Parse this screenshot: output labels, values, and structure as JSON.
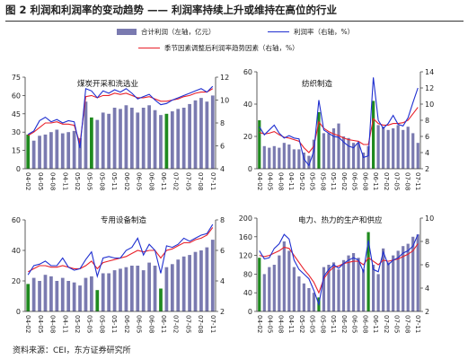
{
  "figure": {
    "title": "图 2  利润和利润率的变动趋势 —— 利润率持续上升或维持在高位的行业",
    "source": "资料来源：CEI，东方证券研究所"
  },
  "legend": {
    "bar_label": "合计利润（左轴，亿元）",
    "line1_label": "利润率（右轴，%）",
    "line2_label": "季节因素调整后利润率趋势因素（右轴，%）",
    "colors": {
      "bar": "#7a7ab0",
      "bar_highlight": "#1f8a1f",
      "line1": "#1f2fd0",
      "line2": "#e8202a"
    }
  },
  "chart_data": [
    {
      "type": "bar",
      "title": "煤炭开采和洗选业",
      "x_tick_labels": [
        "04-02",
        "04-05",
        "04-08",
        "04-11",
        "05-02",
        "05-05",
        "05-08",
        "05-11",
        "06-02",
        "06-05",
        "06-08",
        "06-11",
        "07-02",
        "07-05",
        "07-08",
        "07-11"
      ],
      "ylim_left": [
        0,
        75
      ],
      "yticks_left": [
        0,
        15,
        30,
        45,
        60,
        75
      ],
      "ylim_right": [
        4,
        12
      ],
      "yticks_right": [
        4,
        6,
        8,
        10,
        12
      ],
      "bars": [
        28,
        23,
        27,
        28,
        30,
        32,
        29,
        30,
        31,
        25,
        55,
        42,
        40,
        46,
        45,
        50,
        49,
        52,
        50,
        46,
        50,
        52,
        48,
        44,
        45,
        47,
        49,
        50,
        53,
        56,
        58,
        55,
        60
      ],
      "highlight_indices": [
        0,
        11,
        24
      ],
      "series": [
        {
          "name": "利润率",
          "values": [
            7.0,
            7.3,
            8.2,
            8.5,
            8.1,
            8.3,
            8.0,
            8.2,
            8.1,
            5.8,
            11.0,
            10.8,
            10.2,
            10.8,
            10.6,
            10.9,
            10.7,
            11.0,
            10.6,
            10.1,
            10.3,
            10.5,
            10.0,
            9.6,
            9.7,
            10.0,
            10.2,
            10.4,
            10.6,
            10.8,
            11.0,
            10.7,
            11.2
          ]
        },
        {
          "name": "利润率趋势",
          "values": [
            6.9,
            7.2,
            7.6,
            8.0,
            8.0,
            8.1,
            7.9,
            7.9,
            7.8,
            6.2,
            10.3,
            10.4,
            10.2,
            10.4,
            10.4,
            10.6,
            10.5,
            10.6,
            10.4,
            10.2,
            10.2,
            10.3,
            10.1,
            9.9,
            9.9,
            10.0,
            10.1,
            10.3,
            10.4,
            10.6,
            10.7,
            10.7,
            11.0
          ]
        }
      ]
    },
    {
      "type": "bar",
      "title": "纺织制造",
      "x_tick_labels": [
        "04-02",
        "04-05",
        "04-08",
        "04-11",
        "05-02",
        "05-05",
        "05-08",
        "05-11",
        "06-02",
        "06-05",
        "06-08",
        "06-11",
        "07-02",
        "07-05",
        "07-08",
        "07-11"
      ],
      "ylim_left": [
        0,
        60
      ],
      "yticks_left": [
        0,
        20,
        40,
        60
      ],
      "ylim_right": [
        2,
        14
      ],
      "yticks_right": [
        2,
        4,
        6,
        8,
        10,
        12,
        14
      ],
      "bars": [
        30,
        14,
        13,
        14,
        13,
        16,
        15,
        12,
        12,
        10,
        8,
        18,
        35,
        22,
        22,
        25,
        28,
        20,
        19,
        16,
        16,
        10,
        14,
        42,
        27,
        26,
        24,
        25,
        27,
        24,
        26,
        22,
        16
      ],
      "highlight_indices": [
        0,
        12,
        23
      ],
      "series": [
        {
          "name": "利润率",
          "values": [
            7.2,
            6.2,
            6.8,
            7.4,
            6.4,
            5.8,
            6.1,
            5.8,
            5.7,
            3.2,
            2.4,
            4.2,
            10.5,
            6.8,
            6.4,
            6.0,
            5.9,
            5.3,
            4.8,
            4.6,
            5.3,
            3.4,
            3.6,
            13.3,
            8.0,
            7.0,
            7.6,
            8.6,
            7.5,
            7.3,
            8.3,
            10.2,
            12.0
          ]
        },
        {
          "name": "利润率趋势",
          "values": [
            6.5,
            6.3,
            6.4,
            6.6,
            6.2,
            5.9,
            5.8,
            5.6,
            5.4,
            4.6,
            4.0,
            4.8,
            7.8,
            7.0,
            6.6,
            6.3,
            6.1,
            5.8,
            5.6,
            5.5,
            5.4,
            5.0,
            5.0,
            8.2,
            7.6,
            7.4,
            7.4,
            7.6,
            7.6,
            7.7,
            8.0,
            8.8,
            9.6
          ]
        }
      ]
    },
    {
      "type": "bar",
      "title": "专用设备制造",
      "x_tick_labels": [
        "04-02",
        "04-05",
        "04-08",
        "04-11",
        "05-02",
        "05-05",
        "05-08",
        "05-11",
        "06-02",
        "06-05",
        "06-08",
        "06-11",
        "07-02",
        "07-05",
        "07-08",
        "07-11"
      ],
      "ylim_left": [
        0,
        60
      ],
      "yticks_left": [
        0,
        20,
        40,
        60
      ],
      "ylim_right": [
        2,
        8
      ],
      "yticks_right": [
        2,
        4,
        6,
        8
      ],
      "bars": [
        18,
        22,
        20,
        24,
        23,
        20,
        22,
        20,
        19,
        17,
        22,
        23,
        14,
        25,
        25,
        27,
        28,
        29,
        30,
        30,
        27,
        32,
        30,
        15,
        29,
        31,
        34,
        36,
        37,
        39,
        40,
        42,
        47
      ],
      "highlight_indices": [
        0,
        12,
        23
      ],
      "series": [
        {
          "name": "利润率",
          "values": [
            4.4,
            5.0,
            5.1,
            5.3,
            5.0,
            5.0,
            5.5,
            4.9,
            4.7,
            4.8,
            5.4,
            5.9,
            4.3,
            5.5,
            5.6,
            5.5,
            5.5,
            6.0,
            6.2,
            6.8,
            5.7,
            6.4,
            6.0,
            4.5,
            6.3,
            6.2,
            6.4,
            6.8,
            6.6,
            6.8,
            7.0,
            7.1,
            7.7
          ]
        },
        {
          "name": "利润率趋势",
          "values": [
            4.6,
            4.8,
            5.0,
            5.0,
            4.9,
            4.9,
            5.0,
            4.9,
            4.8,
            4.8,
            5.0,
            5.3,
            4.8,
            5.2,
            5.3,
            5.4,
            5.5,
            5.6,
            5.8,
            6.0,
            5.9,
            6.0,
            6.0,
            5.5,
            6.0,
            6.1,
            6.3,
            6.5,
            6.5,
            6.7,
            6.8,
            7.0,
            7.5
          ]
        }
      ]
    },
    {
      "type": "bar",
      "title": "电力、热力的生产和供应",
      "x_tick_labels": [
        "04-02",
        "04-05",
        "04-08",
        "04-11",
        "05-02",
        "05-05",
        "05-08",
        "05-11",
        "06-02",
        "06-05",
        "06-08",
        "06-11",
        "07-02",
        "07-05",
        "07-08",
        "07-11"
      ],
      "ylim_left": [
        0,
        200
      ],
      "yticks_left": [
        0,
        40,
        80,
        120,
        160,
        200
      ],
      "ylim_right": [
        2,
        10
      ],
      "yticks_right": [
        2,
        4,
        6,
        8,
        10
      ],
      "bars": [
        115,
        80,
        95,
        100,
        120,
        150,
        130,
        95,
        75,
        60,
        50,
        40,
        30,
        95,
        100,
        105,
        90,
        110,
        120,
        125,
        115,
        90,
        170,
        100,
        80,
        135,
        105,
        120,
        130,
        140,
        145,
        160,
        165
      ],
      "highlight_indices": [
        0,
        12,
        22
      ],
      "series": [
        {
          "name": "利润率",
          "values": [
            7.2,
            6.5,
            6.6,
            7.4,
            7.8,
            8.6,
            8.2,
            6.4,
            5.6,
            5.2,
            4.8,
            3.8,
            2.6,
            5.0,
            5.6,
            6.0,
            5.7,
            6.1,
            6.4,
            6.6,
            6.4,
            5.4,
            8.1,
            5.6,
            5.4,
            7.1,
            6.0,
            6.4,
            6.6,
            7.0,
            7.2,
            7.6,
            8.6
          ]
        },
        {
          "name": "利润率趋势",
          "values": [
            6.8,
            6.7,
            6.8,
            7.0,
            7.2,
            7.5,
            7.4,
            6.8,
            6.2,
            5.6,
            5.1,
            4.5,
            3.6,
            4.8,
            5.4,
            5.8,
            5.9,
            6.1,
            6.2,
            6.3,
            6.3,
            6.0,
            6.6,
            6.3,
            6.0,
            6.4,
            6.3,
            6.4,
            6.5,
            6.7,
            6.9,
            7.2,
            7.8
          ]
        }
      ]
    }
  ]
}
